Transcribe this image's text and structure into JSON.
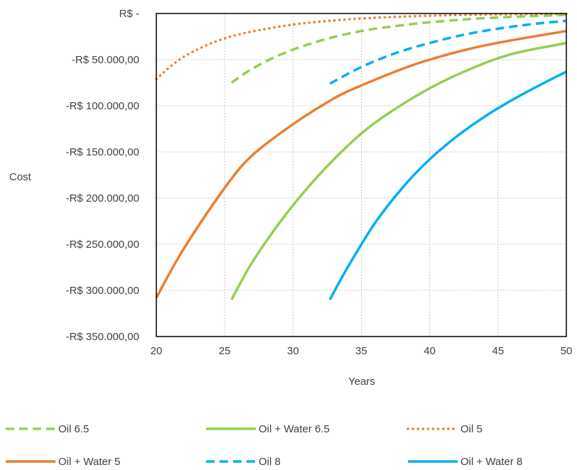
{
  "chart_data": {
    "type": "line",
    "xlabel": "Years",
    "ylabel": "Cost",
    "xlim": [
      20,
      50
    ],
    "ylim": [
      -350000,
      0
    ],
    "x_ticks": [
      20,
      25,
      30,
      35,
      40,
      45,
      50
    ],
    "x_tick_labels": [
      "20",
      "25",
      "30",
      "35",
      "40",
      "45",
      "50"
    ],
    "y_ticks": [
      0,
      -50000,
      -100000,
      -150000,
      -200000,
      -250000,
      -300000,
      -350000
    ],
    "y_tick_labels": [
      "R$ -",
      "-R$ 50.000,00",
      "-R$ 100.000,00",
      "-R$ 150.000,00",
      "-R$ 200.000,00",
      "-R$ 250.000,00",
      "-R$ 300.000,00",
      "-R$ 350.000,00"
    ],
    "grid": true,
    "legend_position": "bottom",
    "series": [
      {
        "name": "Oil 6.5",
        "color": "#92d050",
        "style": "dashed",
        "x": [
          25.5,
          27,
          29,
          31,
          33,
          35,
          37,
          40,
          43,
          46,
          50
        ],
        "y": [
          -75000,
          -60000,
          -45000,
          -34000,
          -25500,
          -19000,
          -14500,
          -9500,
          -6000,
          -3700,
          -1500
        ]
      },
      {
        "name": "Oil + Water 6.5",
        "color": "#92d050",
        "style": "solid",
        "x": [
          25.5,
          27,
          29,
          31,
          33,
          35,
          37,
          40,
          43,
          46,
          50
        ],
        "y": [
          -310000,
          -270000,
          -227000,
          -190000,
          -158000,
          -130000,
          -108000,
          -81000,
          -60000,
          -44000,
          -32000
        ]
      },
      {
        "name": "Oil 5",
        "color": "#ed7d31",
        "style": "dotted",
        "x": [
          20,
          21.5,
          23,
          25,
          27,
          30,
          33,
          36,
          40,
          45,
          50
        ],
        "y": [
          -71000,
          -52000,
          -39000,
          -27000,
          -19500,
          -12000,
          -7500,
          -4600,
          -2400,
          -1000,
          -400
        ]
      },
      {
        "name": "Oil + Water 5",
        "color": "#ed7d31",
        "style": "solid",
        "x": [
          20,
          22,
          25,
          27,
          30,
          33,
          35,
          38,
          40,
          43,
          46,
          50
        ],
        "y": [
          -308000,
          -255000,
          -189000,
          -154000,
          -120000,
          -92000,
          -78000,
          -60000,
          -50000,
          -38000,
          -29000,
          -19000
        ]
      },
      {
        "name": "Oil 8",
        "color": "#00b0f0",
        "style": "dashed",
        "x": [
          32.7,
          35,
          37.5,
          40,
          42.5,
          45,
          47.5,
          50
        ],
        "y": [
          -76000,
          -58000,
          -43000,
          -32000,
          -23000,
          -16500,
          -11500,
          -8000
        ]
      },
      {
        "name": "Oil + Water 8",
        "color": "#00b0f0",
        "style": "solid",
        "x": [
          32.7,
          34,
          36,
          38,
          40,
          42,
          44,
          46,
          48,
          50
        ],
        "y": [
          -310000,
          -275000,
          -227000,
          -189000,
          -158000,
          -133000,
          -112000,
          -94000,
          -78000,
          -63000
        ]
      }
    ]
  }
}
